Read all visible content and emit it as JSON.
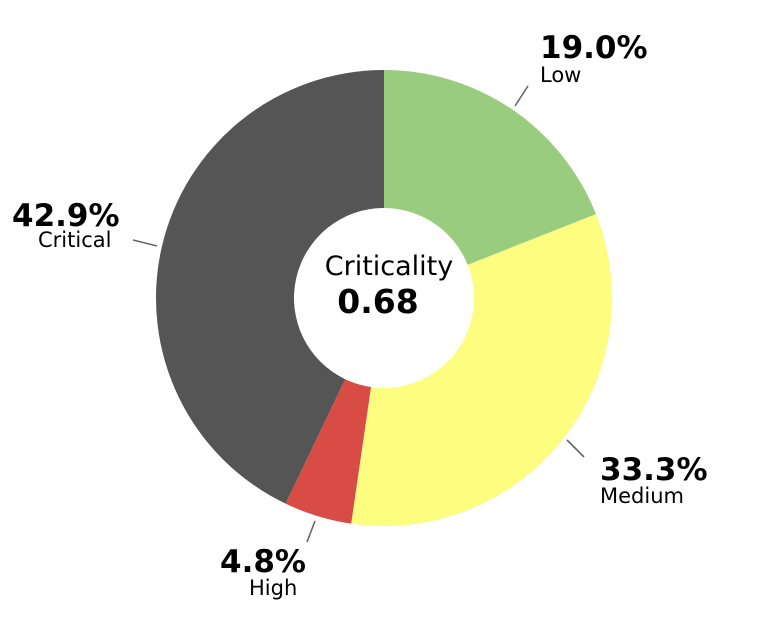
{
  "chart_data": {
    "type": "pie",
    "variant": "donut",
    "slices": [
      {
        "name": "Low",
        "value": 19.0,
        "label": "19.0%",
        "color": "#99cc7f"
      },
      {
        "name": "Medium",
        "value": 33.3,
        "label": "33.3%",
        "color": "#fdfd80"
      },
      {
        "name": "High",
        "value": 4.8,
        "label": "4.8%",
        "color": "#d84c45"
      },
      {
        "name": "Critical",
        "value": 42.9,
        "label": "42.9%",
        "color": "#555555"
      }
    ],
    "center": {
      "label": "Criticality",
      "value": "0.68"
    }
  }
}
